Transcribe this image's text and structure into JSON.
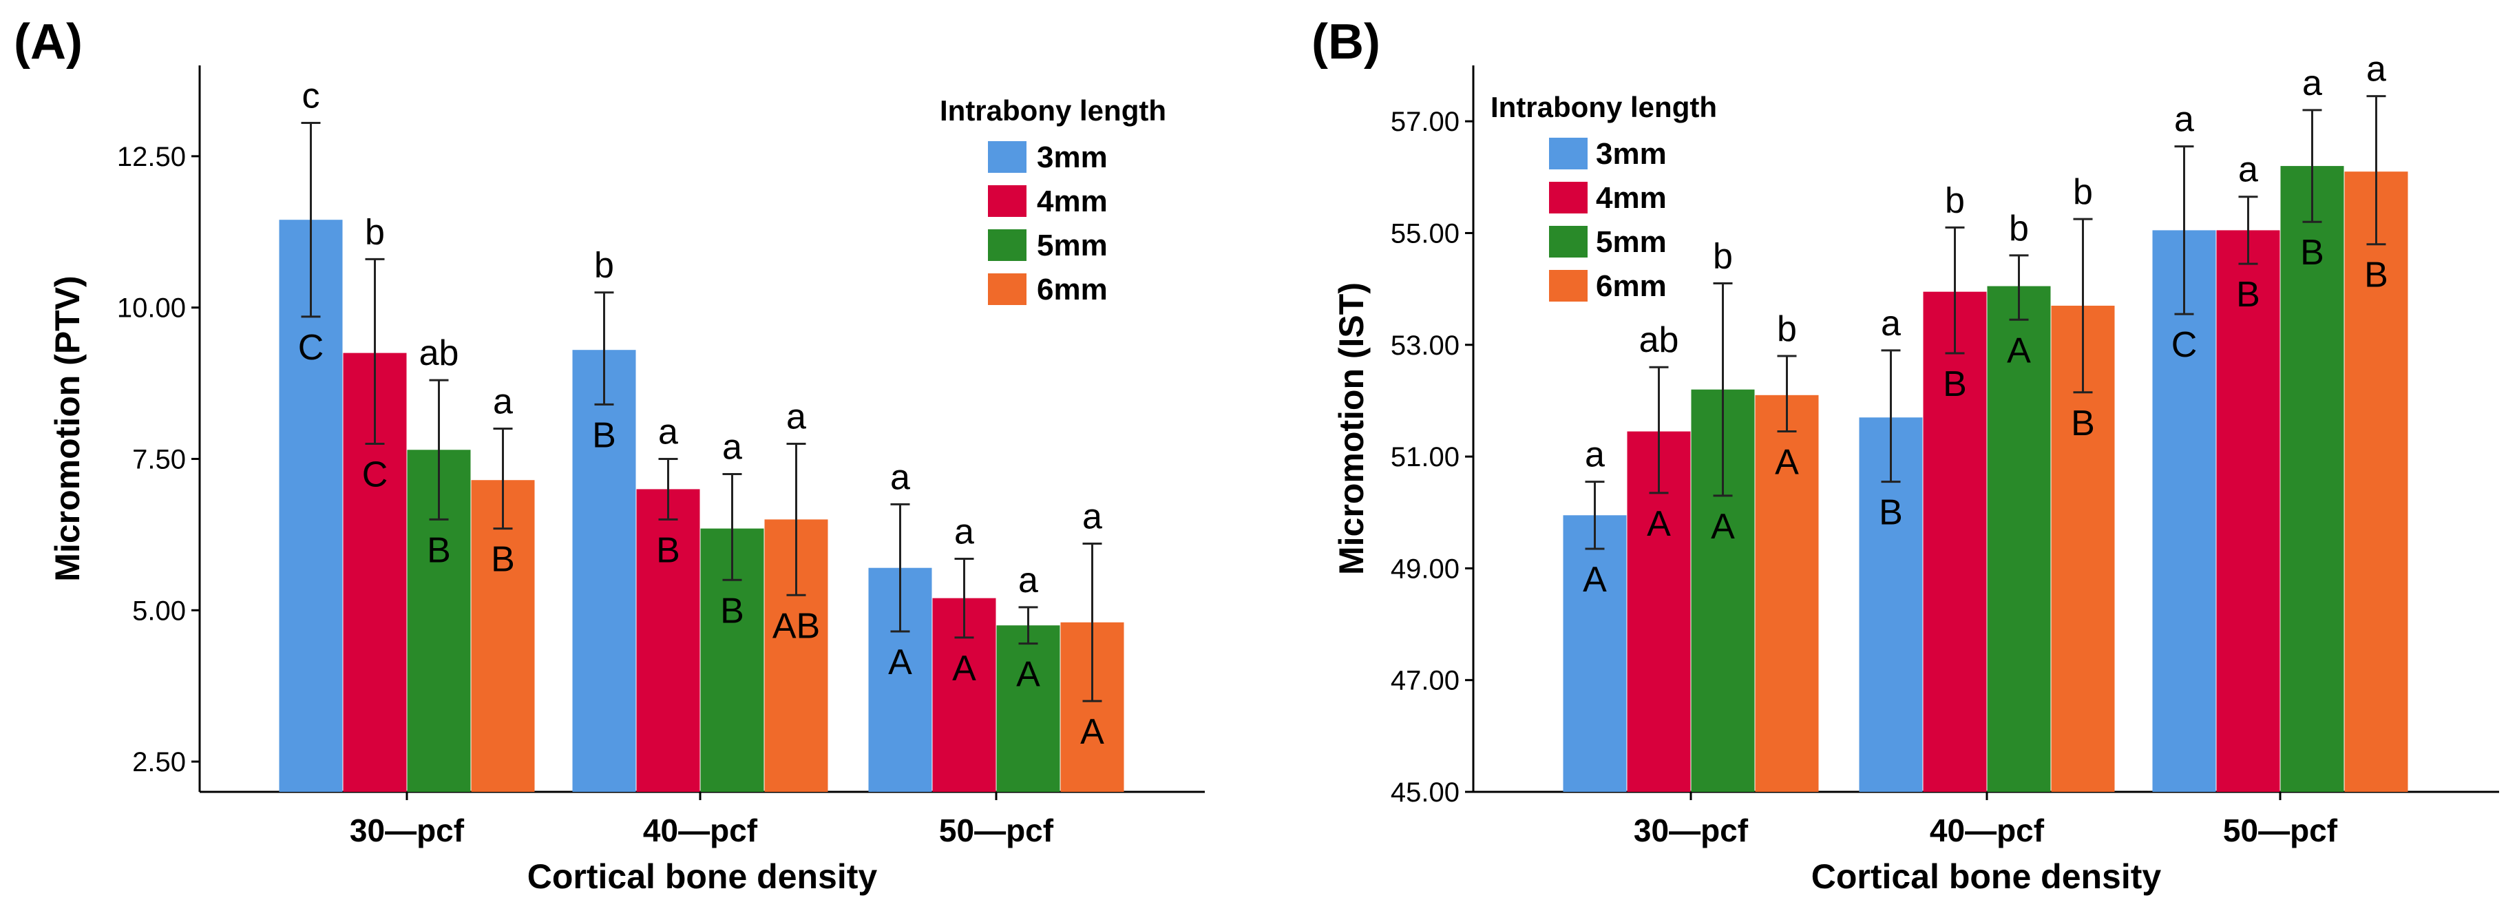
{
  "chart_data": [
    {
      "type": "bar",
      "panel_label": "(A)",
      "xlabel": "Cortical bone density",
      "ylabel": "Micromotion (PTV)",
      "categories": [
        "30—pcf",
        "40—pcf",
        "50—pcf"
      ],
      "ylim": [
        2.0,
        14.0
      ],
      "yticks": [
        "2.50",
        "5.00",
        "7.50",
        "10.00",
        "12.50"
      ],
      "legend": {
        "title": "Intrabony length",
        "position": "top-right"
      },
      "series": [
        {
          "name": "3mm",
          "color": "#5599e2",
          "values": [
            11.45,
            9.3,
            5.7
          ],
          "err_low": [
            9.85,
            8.4,
            4.65
          ],
          "err_high": [
            13.05,
            10.25,
            6.75
          ],
          "top_letters": [
            "c",
            "b",
            "a"
          ],
          "in_letters": [
            "C",
            "B",
            "A"
          ]
        },
        {
          "name": "4mm",
          "color": "#d8003c",
          "values": [
            9.25,
            7.0,
            5.2
          ],
          "err_low": [
            7.75,
            6.5,
            4.55
          ],
          "err_high": [
            10.8,
            7.5,
            5.85
          ],
          "top_letters": [
            "b",
            "a",
            "a"
          ],
          "in_letters": [
            "C",
            "B",
            "A"
          ]
        },
        {
          "name": "5mm",
          "color": "#298a29",
          "values": [
            7.65,
            6.35,
            4.75
          ],
          "err_low": [
            6.5,
            5.5,
            4.45
          ],
          "err_high": [
            8.8,
            7.25,
            5.05
          ],
          "top_letters": [
            "ab",
            "a",
            "a"
          ],
          "in_letters": [
            "B",
            "B",
            "A"
          ]
        },
        {
          "name": "6mm",
          "color": "#f06a2a",
          "values": [
            7.15,
            6.5,
            4.8
          ],
          "err_low": [
            6.35,
            5.25,
            3.5
          ],
          "err_high": [
            8.0,
            7.75,
            6.1
          ],
          "top_letters": [
            "a",
            "a",
            "a"
          ],
          "in_letters": [
            "B",
            "AB",
            "A"
          ]
        }
      ]
    },
    {
      "type": "bar",
      "panel_label": "(B)",
      "xlabel": "Cortical bone density",
      "ylabel": "Micromotion (IST)",
      "categories": [
        "30—pcf",
        "40—pcf",
        "50—pcf"
      ],
      "ylim": [
        45.0,
        58.0
      ],
      "yticks": [
        "45.00",
        "47.00",
        "49.00",
        "51.00",
        "53.00",
        "55.00",
        "57.00"
      ],
      "legend": {
        "title": "Intrabony length",
        "position": "top-left"
      },
      "series": [
        {
          "name": "3mm",
          "color": "#5599e2",
          "values": [
            49.95,
            51.7,
            55.05
          ],
          "err_low": [
            49.35,
            50.55,
            53.55
          ],
          "err_high": [
            50.55,
            52.9,
            56.55
          ],
          "top_letters": [
            "a",
            "a",
            "a"
          ],
          "in_letters": [
            "A",
            "B",
            "C"
          ]
        },
        {
          "name": "4mm",
          "color": "#d8003c",
          "values": [
            51.45,
            53.95,
            55.05
          ],
          "err_low": [
            50.35,
            52.85,
            54.45
          ],
          "err_high": [
            52.6,
            55.1,
            55.65
          ],
          "top_letters": [
            "ab",
            "b",
            "a"
          ],
          "in_letters": [
            "A",
            "B",
            "B"
          ]
        },
        {
          "name": "5mm",
          "color": "#298a29",
          "values": [
            52.2,
            54.05,
            56.2
          ],
          "err_low": [
            50.3,
            53.45,
            55.2
          ],
          "err_high": [
            54.1,
            54.6,
            57.2
          ],
          "top_letters": [
            "b",
            "b",
            "a"
          ],
          "in_letters": [
            "A",
            "A",
            "B"
          ]
        },
        {
          "name": "6mm",
          "color": "#f06a2a",
          "values": [
            52.1,
            53.7,
            56.1
          ],
          "err_low": [
            51.45,
            52.15,
            54.8
          ],
          "err_high": [
            52.8,
            55.25,
            57.45
          ],
          "top_letters": [
            "b",
            "b",
            "a"
          ],
          "in_letters": [
            "A",
            "B",
            "B"
          ]
        }
      ]
    }
  ]
}
